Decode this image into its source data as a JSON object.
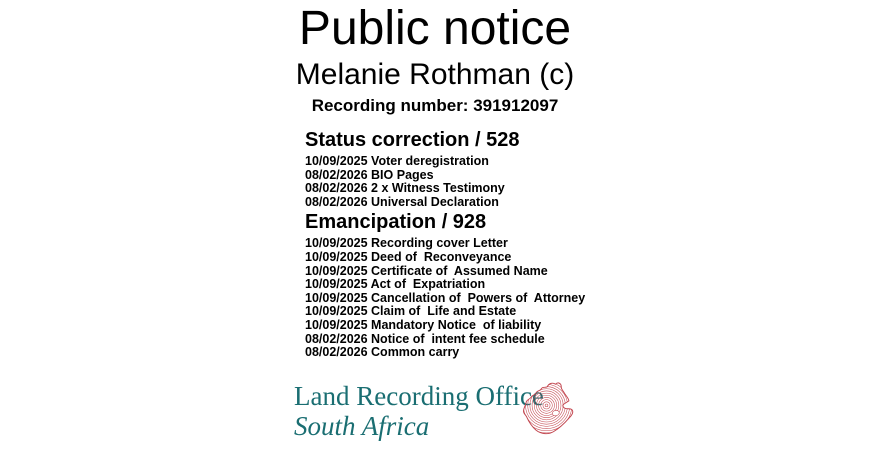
{
  "notice": {
    "title": "Public notice",
    "subject": "Melanie Rothman (c)",
    "recording_line": "Recording number: 391912097"
  },
  "sections": [
    {
      "heading": "Status correction / 528",
      "items": [
        "10/09/2025 Voter deregistration",
        "08/02/2026 BIO Pages",
        "08/02/2026 2 x Witness Testimony",
        "08/02/2026 Universal Declaration"
      ]
    },
    {
      "heading": "Emancipation / 928",
      "items": [
        "10/09/2025 Recording cover Letter",
        "10/09/2025 Deed of  Reconveyance",
        "10/09/2025 Certificate of  Assumed Name",
        "10/09/2025 Act of  Expatriation",
        "10/09/2025 Cancellation of  Powers of  Attorney",
        "10/09/2025 Claim of  Life and Estate",
        "10/09/2025 Mandatory Notice  of liability",
        "08/02/2026 Notice of  intent fee schedule",
        "08/02/2026 Common carry"
      ]
    }
  ],
  "footer": {
    "org_name": "Land Recording Office",
    "org_region": "South Africa",
    "map_icon": "south-africa-fingerprint-map-icon",
    "colors": {
      "teal": "#1a6e72",
      "red": "#c2454e",
      "text": "#000000"
    }
  }
}
